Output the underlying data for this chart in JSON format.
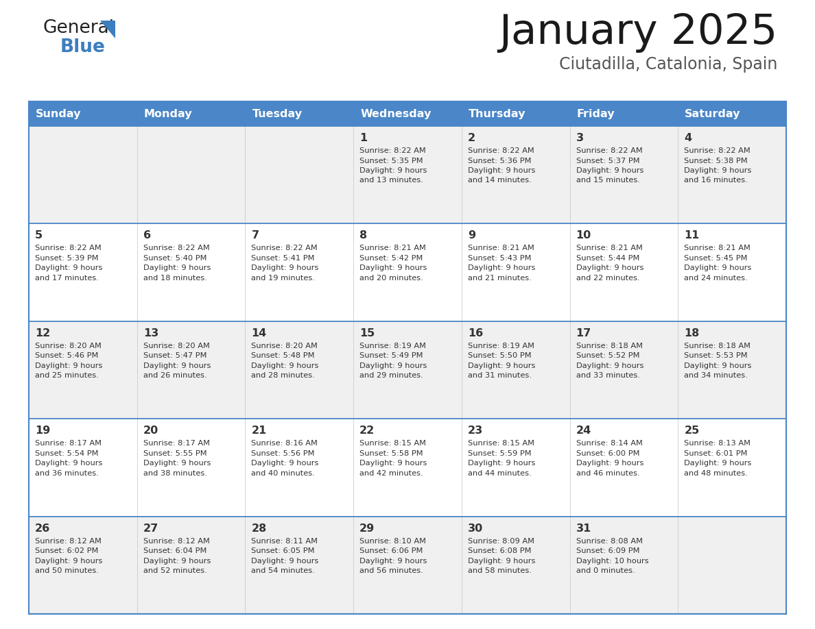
{
  "title": "January 2025",
  "subtitle": "Ciutadilla, Catalonia, Spain",
  "header_bg": "#4a86c8",
  "header_text_color": "#ffffff",
  "row_bg_odd": "#f0f0f0",
  "row_bg_even": "#ffffff",
  "border_color": "#4a86c8",
  "text_color": "#333333",
  "days_of_week": [
    "Sunday",
    "Monday",
    "Tuesday",
    "Wednesday",
    "Thursday",
    "Friday",
    "Saturday"
  ],
  "calendar_data": [
    [
      null,
      null,
      null,
      {
        "day": 1,
        "sunrise": "8:22 AM",
        "sunset": "5:35 PM",
        "daylight": "9 hours",
        "daylight2": "and 13 minutes."
      },
      {
        "day": 2,
        "sunrise": "8:22 AM",
        "sunset": "5:36 PM",
        "daylight": "9 hours",
        "daylight2": "and 14 minutes."
      },
      {
        "day": 3,
        "sunrise": "8:22 AM",
        "sunset": "5:37 PM",
        "daylight": "9 hours",
        "daylight2": "and 15 minutes."
      },
      {
        "day": 4,
        "sunrise": "8:22 AM",
        "sunset": "5:38 PM",
        "daylight": "9 hours",
        "daylight2": "and 16 minutes."
      }
    ],
    [
      {
        "day": 5,
        "sunrise": "8:22 AM",
        "sunset": "5:39 PM",
        "daylight": "9 hours",
        "daylight2": "and 17 minutes."
      },
      {
        "day": 6,
        "sunrise": "8:22 AM",
        "sunset": "5:40 PM",
        "daylight": "9 hours",
        "daylight2": "and 18 minutes."
      },
      {
        "day": 7,
        "sunrise": "8:22 AM",
        "sunset": "5:41 PM",
        "daylight": "9 hours",
        "daylight2": "and 19 minutes."
      },
      {
        "day": 8,
        "sunrise": "8:21 AM",
        "sunset": "5:42 PM",
        "daylight": "9 hours",
        "daylight2": "and 20 minutes."
      },
      {
        "day": 9,
        "sunrise": "8:21 AM",
        "sunset": "5:43 PM",
        "daylight": "9 hours",
        "daylight2": "and 21 minutes."
      },
      {
        "day": 10,
        "sunrise": "8:21 AM",
        "sunset": "5:44 PM",
        "daylight": "9 hours",
        "daylight2": "and 22 minutes."
      },
      {
        "day": 11,
        "sunrise": "8:21 AM",
        "sunset": "5:45 PM",
        "daylight": "9 hours",
        "daylight2": "and 24 minutes."
      }
    ],
    [
      {
        "day": 12,
        "sunrise": "8:20 AM",
        "sunset": "5:46 PM",
        "daylight": "9 hours",
        "daylight2": "and 25 minutes."
      },
      {
        "day": 13,
        "sunrise": "8:20 AM",
        "sunset": "5:47 PM",
        "daylight": "9 hours",
        "daylight2": "and 26 minutes."
      },
      {
        "day": 14,
        "sunrise": "8:20 AM",
        "sunset": "5:48 PM",
        "daylight": "9 hours",
        "daylight2": "and 28 minutes."
      },
      {
        "day": 15,
        "sunrise": "8:19 AM",
        "sunset": "5:49 PM",
        "daylight": "9 hours",
        "daylight2": "and 29 minutes."
      },
      {
        "day": 16,
        "sunrise": "8:19 AM",
        "sunset": "5:50 PM",
        "daylight": "9 hours",
        "daylight2": "and 31 minutes."
      },
      {
        "day": 17,
        "sunrise": "8:18 AM",
        "sunset": "5:52 PM",
        "daylight": "9 hours",
        "daylight2": "and 33 minutes."
      },
      {
        "day": 18,
        "sunrise": "8:18 AM",
        "sunset": "5:53 PM",
        "daylight": "9 hours",
        "daylight2": "and 34 minutes."
      }
    ],
    [
      {
        "day": 19,
        "sunrise": "8:17 AM",
        "sunset": "5:54 PM",
        "daylight": "9 hours",
        "daylight2": "and 36 minutes."
      },
      {
        "day": 20,
        "sunrise": "8:17 AM",
        "sunset": "5:55 PM",
        "daylight": "9 hours",
        "daylight2": "and 38 minutes."
      },
      {
        "day": 21,
        "sunrise": "8:16 AM",
        "sunset": "5:56 PM",
        "daylight": "9 hours",
        "daylight2": "and 40 minutes."
      },
      {
        "day": 22,
        "sunrise": "8:15 AM",
        "sunset": "5:58 PM",
        "daylight": "9 hours",
        "daylight2": "and 42 minutes."
      },
      {
        "day": 23,
        "sunrise": "8:15 AM",
        "sunset": "5:59 PM",
        "daylight": "9 hours",
        "daylight2": "and 44 minutes."
      },
      {
        "day": 24,
        "sunrise": "8:14 AM",
        "sunset": "6:00 PM",
        "daylight": "9 hours",
        "daylight2": "and 46 minutes."
      },
      {
        "day": 25,
        "sunrise": "8:13 AM",
        "sunset": "6:01 PM",
        "daylight": "9 hours",
        "daylight2": "and 48 minutes."
      }
    ],
    [
      {
        "day": 26,
        "sunrise": "8:12 AM",
        "sunset": "6:02 PM",
        "daylight": "9 hours",
        "daylight2": "and 50 minutes."
      },
      {
        "day": 27,
        "sunrise": "8:12 AM",
        "sunset": "6:04 PM",
        "daylight": "9 hours",
        "daylight2": "and 52 minutes."
      },
      {
        "day": 28,
        "sunrise": "8:11 AM",
        "sunset": "6:05 PM",
        "daylight": "9 hours",
        "daylight2": "and 54 minutes."
      },
      {
        "day": 29,
        "sunrise": "8:10 AM",
        "sunset": "6:06 PM",
        "daylight": "9 hours",
        "daylight2": "and 56 minutes."
      },
      {
        "day": 30,
        "sunrise": "8:09 AM",
        "sunset": "6:08 PM",
        "daylight": "9 hours",
        "daylight2": "and 58 minutes."
      },
      {
        "day": 31,
        "sunrise": "8:08 AM",
        "sunset": "6:09 PM",
        "daylight": "10 hours",
        "daylight2": "and 0 minutes."
      },
      null
    ]
  ]
}
